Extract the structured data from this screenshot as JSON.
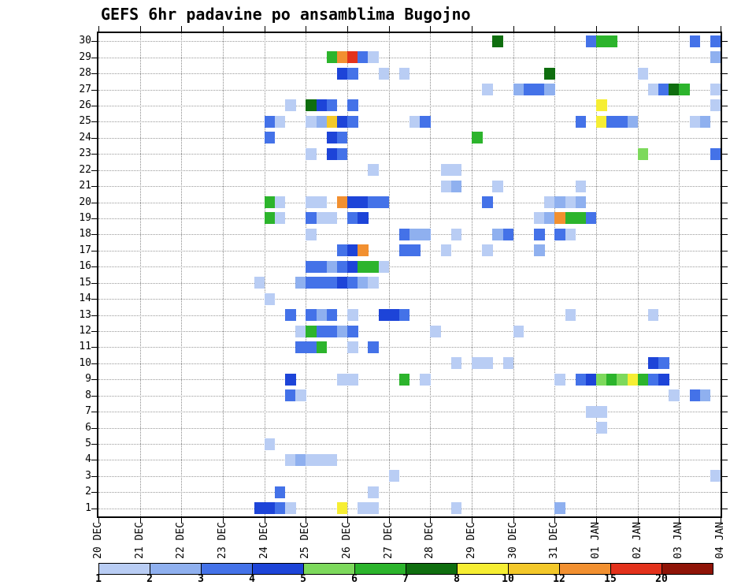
{
  "chart_data": {
    "type": "heatmap",
    "title": "GEFS 6hr padavine po ansamblima Bugojno",
    "x_axis": {
      "tick_labels": [
        "20 DEC",
        "21 DEC",
        "22 DEC",
        "23 DEC",
        "24 DEC",
        "25 DEC",
        "26 DEC",
        "27 DEC",
        "28 DEC",
        "29 DEC",
        "30 DEC",
        "31 DEC",
        "01 JAN",
        "02 JAN",
        "03 JAN",
        "04 JAN"
      ],
      "steps_per_day": 4,
      "total_steps": 60
    },
    "y_axis": {
      "tick_labels": [
        "1",
        "2",
        "3",
        "4",
        "5",
        "6",
        "7",
        "8",
        "9",
        "10",
        "11",
        "12",
        "13",
        "14",
        "15",
        "16",
        "17",
        "18",
        "19",
        "20",
        "21",
        "22",
        "23",
        "24",
        "25",
        "26",
        "27",
        "28",
        "29",
        "30"
      ]
    },
    "colorbar": {
      "levels": [
        {
          "value": 1,
          "color": "#b9cdf4"
        },
        {
          "value": 2,
          "color": "#8fb0ef"
        },
        {
          "value": 3,
          "color": "#4472e8"
        },
        {
          "value": 4,
          "color": "#1d44d8"
        },
        {
          "value": 5,
          "color": "#7dd95c"
        },
        {
          "value": 6,
          "color": "#2cb42c"
        },
        {
          "value": 7,
          "color": "#0f6e0f"
        },
        {
          "value": 8,
          "color": "#f6ee33"
        },
        {
          "value": 10,
          "color": "#f3c82a"
        },
        {
          "value": 12,
          "color": "#f29030"
        },
        {
          "value": 15,
          "color": "#e3321c"
        },
        {
          "value": 20,
          "color": "#8f1407"
        }
      ]
    },
    "cell_format": [
      "ensemble_member",
      "six_hour_step_index_from_20_DEC_00h",
      "precip_level"
    ],
    "cells": [
      [
        30,
        38,
        7
      ],
      [
        30,
        47,
        3
      ],
      [
        30,
        48,
        6
      ],
      [
        30,
        49,
        6
      ],
      [
        30,
        57,
        3
      ],
      [
        30,
        59,
        3
      ],
      [
        29,
        22,
        6
      ],
      [
        29,
        23,
        12
      ],
      [
        29,
        24,
        15
      ],
      [
        29,
        25,
        3
      ],
      [
        29,
        26,
        1
      ],
      [
        29,
        59,
        2
      ],
      [
        28,
        23,
        4
      ],
      [
        28,
        24,
        3
      ],
      [
        28,
        27,
        1
      ],
      [
        28,
        29,
        1
      ],
      [
        28,
        43,
        7
      ],
      [
        28,
        52,
        1
      ],
      [
        27,
        37,
        1
      ],
      [
        27,
        40,
        2
      ],
      [
        27,
        41,
        3
      ],
      [
        27,
        42,
        3
      ],
      [
        27,
        43,
        2
      ],
      [
        27,
        53,
        1
      ],
      [
        27,
        54,
        3
      ],
      [
        27,
        55,
        7
      ],
      [
        27,
        56,
        6
      ],
      [
        27,
        59,
        1
      ],
      [
        26,
        18,
        1
      ],
      [
        26,
        20,
        7
      ],
      [
        26,
        21,
        4
      ],
      [
        26,
        22,
        3
      ],
      [
        26,
        24,
        3
      ],
      [
        26,
        48,
        8
      ],
      [
        26,
        59,
        1
      ],
      [
        25,
        16,
        3
      ],
      [
        25,
        17,
        1
      ],
      [
        25,
        20,
        1
      ],
      [
        25,
        21,
        2
      ],
      [
        25,
        22,
        10
      ],
      [
        25,
        23,
        4
      ],
      [
        25,
        24,
        3
      ],
      [
        25,
        30,
        1
      ],
      [
        25,
        31,
        3
      ],
      [
        25,
        46,
        3
      ],
      [
        25,
        48,
        8
      ],
      [
        25,
        49,
        3
      ],
      [
        25,
        50,
        3
      ],
      [
        25,
        51,
        2
      ],
      [
        25,
        57,
        1
      ],
      [
        25,
        58,
        2
      ],
      [
        24,
        16,
        3
      ],
      [
        24,
        22,
        4
      ],
      [
        24,
        23,
        3
      ],
      [
        24,
        36,
        6
      ],
      [
        23,
        20,
        1
      ],
      [
        23,
        22,
        4
      ],
      [
        23,
        23,
        3
      ],
      [
        23,
        52,
        5
      ],
      [
        23,
        59,
        3
      ],
      [
        22,
        26,
        1
      ],
      [
        22,
        33,
        1
      ],
      [
        22,
        34,
        1
      ],
      [
        21,
        33,
        1
      ],
      [
        21,
        34,
        2
      ],
      [
        21,
        38,
        1
      ],
      [
        21,
        46,
        1
      ],
      [
        20,
        16,
        6
      ],
      [
        20,
        17,
        1
      ],
      [
        20,
        20,
        1
      ],
      [
        20,
        21,
        1
      ],
      [
        20,
        23,
        12
      ],
      [
        20,
        24,
        4
      ],
      [
        20,
        25,
        4
      ],
      [
        20,
        26,
        3
      ],
      [
        20,
        27,
        3
      ],
      [
        20,
        37,
        3
      ],
      [
        20,
        43,
        1
      ],
      [
        20,
        44,
        2
      ],
      [
        20,
        45,
        1
      ],
      [
        20,
        46,
        2
      ],
      [
        19,
        16,
        6
      ],
      [
        19,
        17,
        1
      ],
      [
        19,
        20,
        3
      ],
      [
        19,
        21,
        1
      ],
      [
        19,
        22,
        1
      ],
      [
        19,
        24,
        3
      ],
      [
        19,
        25,
        4
      ],
      [
        19,
        42,
        1
      ],
      [
        19,
        43,
        2
      ],
      [
        19,
        44,
        12
      ],
      [
        19,
        45,
        6
      ],
      [
        19,
        46,
        6
      ],
      [
        19,
        47,
        3
      ],
      [
        18,
        20,
        1
      ],
      [
        18,
        29,
        3
      ],
      [
        18,
        30,
        2
      ],
      [
        18,
        31,
        2
      ],
      [
        18,
        34,
        1
      ],
      [
        18,
        38,
        2
      ],
      [
        18,
        39,
        3
      ],
      [
        18,
        42,
        3
      ],
      [
        18,
        44,
        3
      ],
      [
        18,
        45,
        1
      ],
      [
        17,
        23,
        3
      ],
      [
        17,
        24,
        4
      ],
      [
        17,
        25,
        12
      ],
      [
        17,
        29,
        3
      ],
      [
        17,
        30,
        3
      ],
      [
        17,
        33,
        1
      ],
      [
        17,
        37,
        1
      ],
      [
        17,
        42,
        2
      ],
      [
        16,
        20,
        3
      ],
      [
        16,
        21,
        3
      ],
      [
        16,
        22,
        2
      ],
      [
        16,
        23,
        3
      ],
      [
        16,
        24,
        4
      ],
      [
        16,
        25,
        6
      ],
      [
        16,
        26,
        6
      ],
      [
        16,
        27,
        1
      ],
      [
        15,
        15,
        1
      ],
      [
        15,
        19,
        2
      ],
      [
        15,
        20,
        3
      ],
      [
        15,
        21,
        3
      ],
      [
        15,
        22,
        3
      ],
      [
        15,
        23,
        4
      ],
      [
        15,
        24,
        3
      ],
      [
        15,
        25,
        2
      ],
      [
        15,
        26,
        1
      ],
      [
        14,
        16,
        1
      ],
      [
        13,
        18,
        3
      ],
      [
        13,
        20,
        3
      ],
      [
        13,
        21,
        2
      ],
      [
        13,
        22,
        3
      ],
      [
        13,
        24,
        1
      ],
      [
        13,
        27,
        4
      ],
      [
        13,
        28,
        4
      ],
      [
        13,
        29,
        3
      ],
      [
        13,
        45,
        1
      ],
      [
        13,
        53,
        1
      ],
      [
        12,
        19,
        1
      ],
      [
        12,
        20,
        6
      ],
      [
        12,
        21,
        3
      ],
      [
        12,
        22,
        3
      ],
      [
        12,
        23,
        2
      ],
      [
        12,
        24,
        3
      ],
      [
        12,
        32,
        1
      ],
      [
        12,
        40,
        1
      ],
      [
        11,
        19,
        3
      ],
      [
        11,
        20,
        3
      ],
      [
        11,
        21,
        6
      ],
      [
        11,
        24,
        1
      ],
      [
        11,
        26,
        3
      ],
      [
        10,
        34,
        1
      ],
      [
        10,
        36,
        1
      ],
      [
        10,
        37,
        1
      ],
      [
        10,
        39,
        1
      ],
      [
        10,
        53,
        4
      ],
      [
        10,
        54,
        3
      ],
      [
        9,
        18,
        4
      ],
      [
        9,
        23,
        1
      ],
      [
        9,
        24,
        1
      ],
      [
        9,
        29,
        6
      ],
      [
        9,
        31,
        1
      ],
      [
        9,
        44,
        1
      ],
      [
        9,
        46,
        3
      ],
      [
        9,
        47,
        4
      ],
      [
        9,
        48,
        5
      ],
      [
        9,
        49,
        6
      ],
      [
        9,
        50,
        5
      ],
      [
        9,
        51,
        8
      ],
      [
        9,
        52,
        6
      ],
      [
        9,
        53,
        3
      ],
      [
        9,
        54,
        4
      ],
      [
        8,
        18,
        3
      ],
      [
        8,
        19,
        1
      ],
      [
        8,
        55,
        1
      ],
      [
        8,
        57,
        3
      ],
      [
        8,
        58,
        2
      ],
      [
        7,
        47,
        1
      ],
      [
        7,
        48,
        1
      ],
      [
        6,
        48,
        1
      ],
      [
        5,
        16,
        1
      ],
      [
        4,
        18,
        1
      ],
      [
        4,
        19,
        2
      ],
      [
        4,
        20,
        1
      ],
      [
        4,
        21,
        1
      ],
      [
        4,
        22,
        1
      ],
      [
        3,
        28,
        1
      ],
      [
        3,
        59,
        1
      ],
      [
        2,
        17,
        3
      ],
      [
        2,
        26,
        1
      ],
      [
        1,
        15,
        4
      ],
      [
        1,
        16,
        4
      ],
      [
        1,
        17,
        3
      ],
      [
        1,
        18,
        1
      ],
      [
        1,
        23,
        8
      ],
      [
        1,
        25,
        1
      ],
      [
        1,
        26,
        1
      ],
      [
        1,
        34,
        1
      ],
      [
        1,
        44,
        2
      ]
    ],
    "layout": {
      "grid": "dotted vertical lines at each day, dotted horizontal lines at each member",
      "legend_position": "bottom horizontal colorbar"
    }
  }
}
